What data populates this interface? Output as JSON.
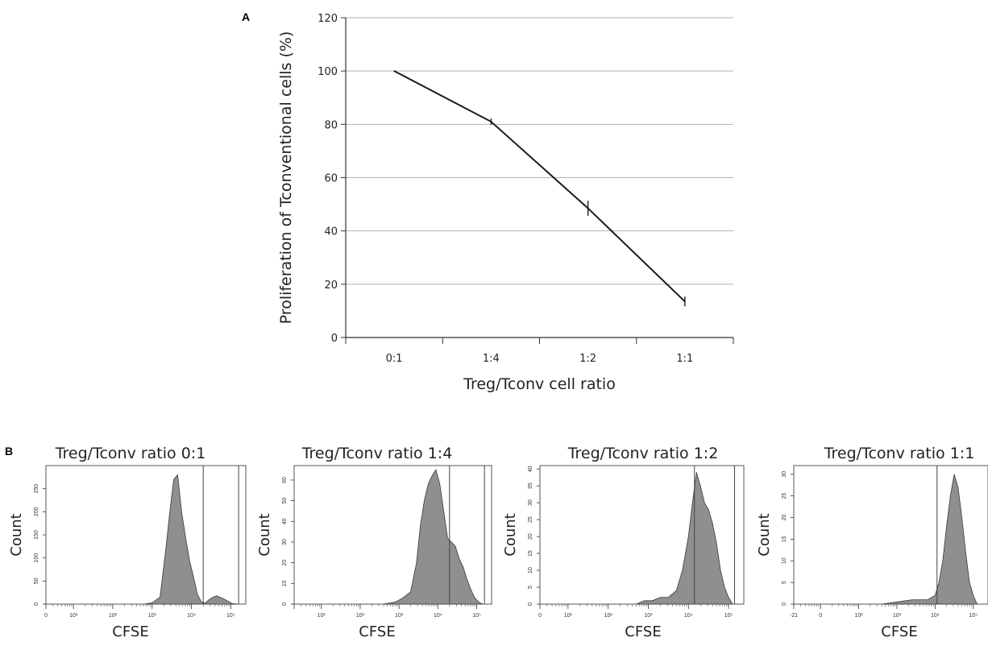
{
  "panel_labels": {
    "a": "A",
    "b": "B"
  },
  "chart_data": [
    {
      "type": "line",
      "title": "",
      "xlabel": "Treg/Tconv cell ratio",
      "ylabel": "Proliferation of Tconventional cells (%)",
      "categories": [
        "0:1",
        "1:4",
        "1:2",
        "1:1"
      ],
      "values": [
        100,
        81,
        48.5,
        13.5
      ],
      "error": [
        0,
        1.2,
        2.8,
        1.8
      ],
      "ylim": [
        0,
        120
      ],
      "yticks": [
        "0",
        "20",
        "40",
        "60",
        "80",
        "100",
        "120"
      ],
      "grid": true,
      "line_color": "#1a1a1a"
    },
    {
      "type": "area",
      "title": "Treg/Tconv ratio 0:1",
      "xlabel": "CFSE",
      "ylabel": "Count",
      "x_scale": "log",
      "yticks": [
        "0",
        "50",
        "100",
        "150",
        "200",
        "250"
      ],
      "xticks": [
        "0",
        "10¹",
        "10²",
        "10³",
        "10⁴",
        "10⁵"
      ],
      "x": [
        2.8,
        3.0,
        3.2,
        3.35,
        3.45,
        3.55,
        3.65,
        3.75,
        3.85,
        3.95,
        4.05,
        4.15,
        4.25,
        4.35,
        4.45,
        4.55,
        4.65,
        4.75,
        4.85,
        4.95,
        5.05,
        5.2
      ],
      "y": [
        0,
        3,
        15,
        120,
        200,
        270,
        280,
        200,
        145,
        95,
        60,
        22,
        5,
        2,
        10,
        15,
        18,
        14,
        10,
        5,
        1,
        0
      ],
      "ylim": [
        0,
        300
      ],
      "fill_color": "#8f8f8f",
      "gate_lines": [
        4.3,
        5.2
      ]
    },
    {
      "type": "area",
      "title": "Treg/Tconv ratio 1:4",
      "xlabel": "CFSE",
      "ylabel": "Count",
      "x_scale": "log",
      "yticks": [
        "0",
        "10",
        "20",
        "30",
        "40",
        "50",
        "60"
      ],
      "xticks": [
        "10¹",
        "10²",
        "10³",
        "10⁴",
        "10⁵"
      ],
      "x": [
        2.6,
        2.9,
        3.1,
        3.3,
        3.45,
        3.55,
        3.65,
        3.75,
        3.85,
        3.95,
        4.05,
        4.15,
        4.25,
        4.35,
        4.45,
        4.55,
        4.65,
        4.75,
        4.85,
        4.95,
        5.05,
        5.15
      ],
      "y": [
        0,
        1,
        3,
        6,
        20,
        38,
        50,
        58,
        62,
        65,
        58,
        45,
        32,
        30,
        28,
        22,
        18,
        12,
        7,
        3,
        1,
        0
      ],
      "ylim": [
        0,
        67
      ],
      "fill_color": "#8f8f8f",
      "gate_lines": [
        4.3,
        5.2
      ]
    },
    {
      "type": "area",
      "title": "Treg/Tconv ratio 1:2",
      "xlabel": "CFSE",
      "ylabel": "Count",
      "x_scale": "log",
      "yticks": [
        "0",
        "5",
        "10",
        "15",
        "20",
        "25",
        "30",
        "35",
        "40"
      ],
      "xticks": [
        "0",
        "10¹",
        "10²",
        "10³",
        "10⁴",
        "10⁵"
      ],
      "x": [
        2.7,
        2.9,
        3.1,
        3.3,
        3.5,
        3.7,
        3.85,
        4.0,
        4.1,
        4.2,
        4.3,
        4.4,
        4.5,
        4.6,
        4.7,
        4.8,
        4.9,
        5.0,
        5.1
      ],
      "y": [
        0,
        1,
        1,
        2,
        2,
        4,
        10,
        20,
        30,
        39,
        35,
        30,
        28,
        24,
        18,
        10,
        5,
        2,
        0
      ],
      "ylim": [
        0,
        41
      ],
      "fill_color": "#8f8f8f",
      "gate_lines": [
        4.15,
        5.15
      ]
    },
    {
      "type": "area",
      "title": "Treg/Tconv ratio 1:1",
      "xlabel": "CFSE",
      "ylabel": "Count",
      "x_scale": "log",
      "yticks": [
        "0",
        "5",
        "10",
        "15",
        "20",
        "25",
        "30"
      ],
      "xticks": [
        "-21",
        "0",
        "10²",
        "10³",
        "10⁴",
        "10⁵"
      ],
      "x": [
        2.6,
        3.0,
        3.4,
        3.8,
        4.0,
        4.1,
        4.2,
        4.3,
        4.4,
        4.5,
        4.6,
        4.7,
        4.8,
        4.9,
        5.0,
        5.1
      ],
      "y": [
        0,
        0.5,
        1,
        1,
        2,
        5,
        10,
        18,
        25,
        30,
        27,
        20,
        12,
        5,
        2,
        0
      ],
      "ylim": [
        0,
        32
      ],
      "fill_color": "#8f8f8f",
      "gate_lines": [
        4.05
      ]
    }
  ]
}
